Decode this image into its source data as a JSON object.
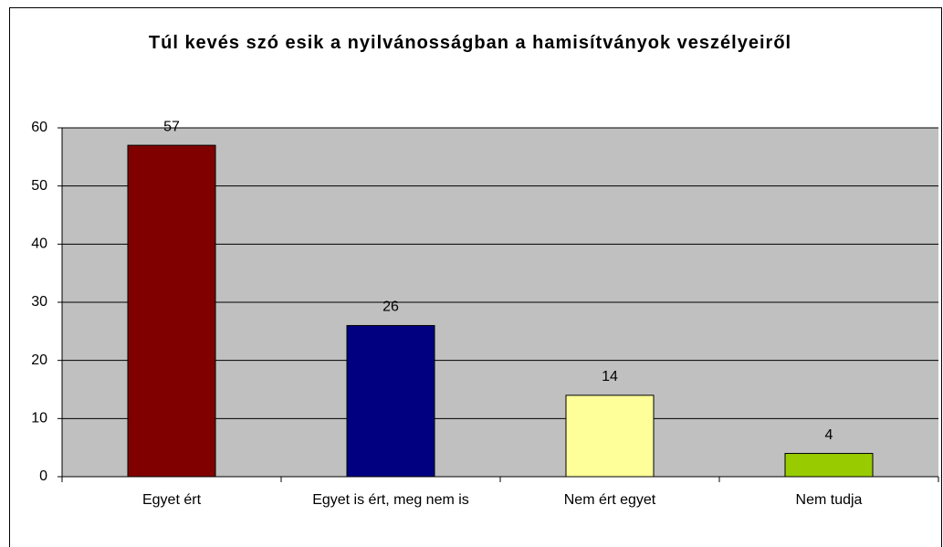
{
  "chart_data": {
    "type": "bar",
    "title": "Túl kevés szó esik a nyilvánosságban a hamisítványok veszélyeiről",
    "categories": [
      "Egyet ért",
      "Egyet is ért, meg nem is",
      "Nem ért egyet",
      "Nem tudja"
    ],
    "values": [
      57,
      26,
      14,
      4
    ],
    "colors": [
      "#800000",
      "#000080",
      "#ffff99",
      "#99cc00"
    ],
    "ylim": [
      0,
      60
    ],
    "yticks": [
      0,
      10,
      20,
      30,
      40,
      50,
      60
    ],
    "grid": true
  }
}
